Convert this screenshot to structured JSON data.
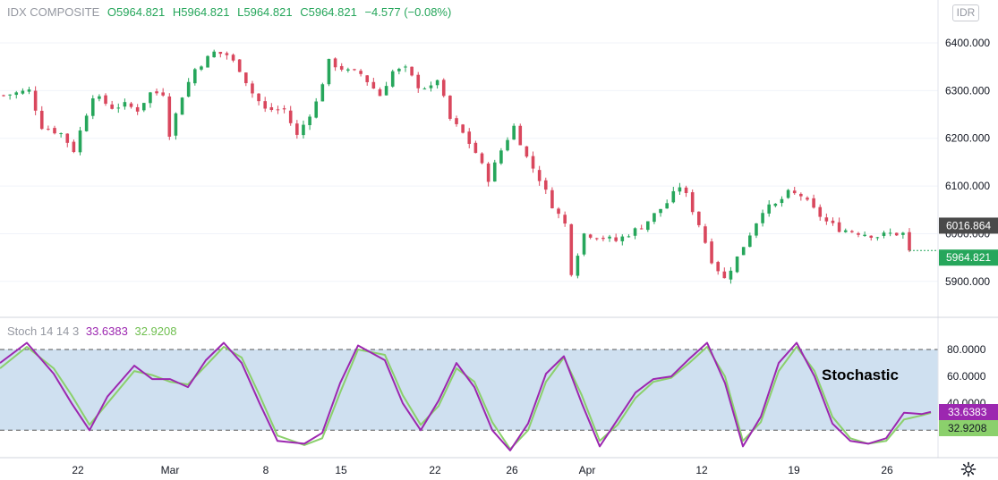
{
  "header": {
    "symbol": "IDX COMPOSITE",
    "open": "O5964.821",
    "high": "H5964.821",
    "low": "L5964.821",
    "close": "C5964.821",
    "change": "−4.577 (−0.08%)"
  },
  "currency_button": "IDR",
  "stoch_header": {
    "name": "Stoch 14 14 3",
    "k": "33.6383",
    "d": "32.9208"
  },
  "annotation": "Stochastic",
  "colors": {
    "up": "#26a65b",
    "down": "#d9475d",
    "k_line": "#9c27b0",
    "d_line": "#8bd06c",
    "band": "#cfe0f0"
  },
  "chart_data": [
    {
      "type": "candlestick",
      "title": "IDX COMPOSITE",
      "y_ticks": [
        "6400.000",
        "6300.000",
        "6200.000",
        "6100.000",
        "6000.000",
        "5900.000"
      ],
      "ylim": [
        5830,
        6480
      ],
      "price_labels": [
        "6016.864",
        "5964.821"
      ],
      "x_ticks": [
        "22",
        "Mar",
        "8",
        "15",
        "22",
        "26",
        "Apr",
        "12",
        "19",
        "26"
      ],
      "close_path": [
        [
          0,
          6290
        ],
        [
          4,
          6300
        ],
        [
          6,
          6225
        ],
        [
          9,
          6210
        ],
        [
          11,
          6175
        ],
        [
          12,
          6215
        ],
        [
          14,
          6290
        ],
        [
          17,
          6265
        ],
        [
          19,
          6270
        ],
        [
          21,
          6260
        ],
        [
          23,
          6295
        ],
        [
          25,
          6295
        ],
        [
          26,
          6210
        ],
        [
          28,
          6290
        ],
        [
          30,
          6345
        ],
        [
          33,
          6380
        ],
        [
          35,
          6375
        ],
        [
          37,
          6345
        ],
        [
          39,
          6295
        ],
        [
          41,
          6260
        ],
        [
          44,
          6260
        ],
        [
          46,
          6205
        ],
        [
          49,
          6275
        ],
        [
          51,
          6360
        ],
        [
          54,
          6340
        ],
        [
          56,
          6335
        ],
        [
          59,
          6290
        ],
        [
          61,
          6340
        ],
        [
          63,
          6345
        ],
        [
          65,
          6310
        ],
        [
          67,
          6305
        ],
        [
          68,
          6325
        ],
        [
          70,
          6240
        ],
        [
          72,
          6210
        ],
        [
          74,
          6170
        ],
        [
          76,
          6115
        ],
        [
          78,
          6175
        ],
        [
          80,
          6225
        ],
        [
          82,
          6160
        ],
        [
          84,
          6115
        ],
        [
          86,
          6060
        ],
        [
          88,
          6020
        ],
        [
          89,
          5920
        ],
        [
          91,
          6000
        ],
        [
          93,
          5995
        ],
        [
          96,
          5985
        ],
        [
          98,
          6000
        ],
        [
          100,
          6015
        ],
        [
          102,
          6040
        ],
        [
          104,
          6065
        ],
        [
          106,
          6100
        ],
        [
          107,
          6080
        ],
        [
          109,
          6020
        ],
        [
          111,
          5945
        ],
        [
          113,
          5905
        ],
        [
          115,
          5950
        ],
        [
          117,
          6000
        ],
        [
          119,
          6050
        ],
        [
          121,
          6060
        ],
        [
          123,
          6085
        ],
        [
          125,
          6080
        ],
        [
          127,
          6050
        ],
        [
          129,
          6025
        ],
        [
          131,
          6010
        ],
        [
          133,
          6005
        ],
        [
          135,
          6000
        ],
        [
          137,
          5995
        ],
        [
          139,
          6000
        ],
        [
          141,
          6000
        ],
        [
          142,
          5965
        ]
      ],
      "last_price": 5964.821
    },
    {
      "type": "line",
      "title": "Stoch 14 14 3",
      "y_ticks": [
        "80.0000",
        "60.0000",
        "40.0000"
      ],
      "ylim": [
        -10,
        95
      ],
      "band": [
        20,
        80
      ],
      "value_labels": [
        "33.6383",
        "32.9208"
      ],
      "series": [
        {
          "name": "33.6383",
          "values": [
            [
              0,
              70
            ],
            [
              3,
              85
            ],
            [
              6,
              62
            ],
            [
              8,
              40
            ],
            [
              10,
              20
            ],
            [
              12,
              45
            ],
            [
              15,
              68
            ],
            [
              17,
              58
            ],
            [
              19,
              58
            ],
            [
              21,
              52
            ],
            [
              23,
              72
            ],
            [
              25,
              85
            ],
            [
              27,
              70
            ],
            [
              29,
              40
            ],
            [
              31,
              12
            ],
            [
              34,
              10
            ],
            [
              36,
              18
            ],
            [
              38,
              55
            ],
            [
              40,
              83
            ],
            [
              43,
              72
            ],
            [
              45,
              40
            ],
            [
              47,
              20
            ],
            [
              49,
              42
            ],
            [
              51,
              70
            ],
            [
              53,
              52
            ],
            [
              55,
              20
            ],
            [
              57,
              5
            ],
            [
              59,
              25
            ],
            [
              61,
              62
            ],
            [
              63,
              75
            ],
            [
              65,
              40
            ],
            [
              67,
              8
            ],
            [
              69,
              28
            ],
            [
              71,
              48
            ],
            [
              73,
              58
            ],
            [
              75,
              60
            ],
            [
              77,
              73
            ],
            [
              79,
              85
            ],
            [
              81,
              55
            ],
            [
              83,
              8
            ],
            [
              85,
              30
            ],
            [
              87,
              70
            ],
            [
              89,
              85
            ],
            [
              91,
              60
            ],
            [
              93,
              25
            ],
            [
              95,
              12
            ],
            [
              97,
              10
            ],
            [
              99,
              14
            ],
            [
              101,
              33
            ],
            [
              103,
              32
            ],
            [
              104,
              33.6
            ]
          ]
        },
        {
          "name": "32.9208",
          "values": [
            [
              0,
              66
            ],
            [
              3,
              82
            ],
            [
              6,
              66
            ],
            [
              8,
              46
            ],
            [
              10,
              24
            ],
            [
              12,
              40
            ],
            [
              15,
              64
            ],
            [
              17,
              61
            ],
            [
              19,
              56
            ],
            [
              21,
              54
            ],
            [
              23,
              68
            ],
            [
              25,
              82
            ],
            [
              27,
              74
            ],
            [
              29,
              46
            ],
            [
              31,
              16
            ],
            [
              34,
              9
            ],
            [
              36,
              14
            ],
            [
              38,
              48
            ],
            [
              40,
              80
            ],
            [
              43,
              76
            ],
            [
              45,
              46
            ],
            [
              47,
              24
            ],
            [
              49,
              38
            ],
            [
              51,
              66
            ],
            [
              53,
              56
            ],
            [
              55,
              26
            ],
            [
              57,
              6
            ],
            [
              59,
              20
            ],
            [
              61,
              56
            ],
            [
              63,
              74
            ],
            [
              65,
              46
            ],
            [
              67,
              12
            ],
            [
              69,
              24
            ],
            [
              71,
              44
            ],
            [
              73,
              56
            ],
            [
              75,
              59
            ],
            [
              77,
              70
            ],
            [
              79,
              82
            ],
            [
              81,
              60
            ],
            [
              83,
              12
            ],
            [
              85,
              26
            ],
            [
              87,
              64
            ],
            [
              89,
              82
            ],
            [
              91,
              64
            ],
            [
              93,
              30
            ],
            [
              95,
              14
            ],
            [
              97,
              10
            ],
            [
              99,
              12
            ],
            [
              101,
              28
            ],
            [
              103,
              31
            ],
            [
              104,
              32.9
            ]
          ]
        }
      ]
    }
  ]
}
